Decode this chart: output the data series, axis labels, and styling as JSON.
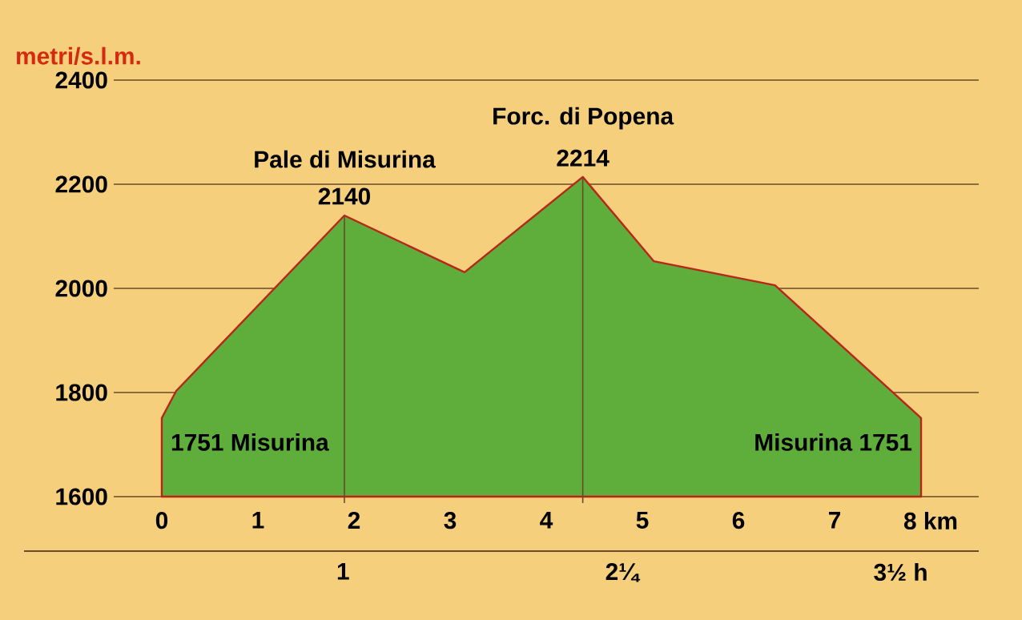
{
  "chart_data": {
    "type": "area",
    "ylabel": "metri/s.l.m.",
    "x": [
      0,
      0.15,
      1.9,
      3.15,
      4.38,
      5.12,
      6.38,
      7.9
    ],
    "series": [
      {
        "color": "#5fae3c",
        "values": [
          1751,
          1803,
          2140,
          2031,
          2214,
          2052,
          2006,
          1751
        ],
        "value_labels": [
          null,
          null,
          "2140",
          null,
          "2214",
          null,
          null,
          null
        ]
      }
    ],
    "xlim": [
      -0.5,
      8.5
    ],
    "ylim": [
      1600,
      2400
    ],
    "xticks": [
      0,
      1,
      2,
      3,
      4,
      5,
      6,
      7,
      {
        "value": 8,
        "label": "8 km"
      }
    ],
    "yticks": [
      1600,
      1800,
      2000,
      2200,
      2400
    ],
    "x2lim": [
      -0.43,
      3.85
    ],
    "x2ticks": [
      1,
      {
        "value": 2.25,
        "label": "2¼"
      },
      {
        "value": 3.5,
        "label": "3½ h"
      }
    ],
    "grid": "y",
    "ref_lines": [
      {
        "axis": "x",
        "value": 1.9,
        "label": "Pale di Misurina"
      },
      {
        "axis": "x",
        "value": 4.38,
        "label": "Forc. di Popena"
      }
    ],
    "annotations": [
      {
        "text": "1751 Misurina",
        "x": 0,
        "y": 1751
      },
      {
        "text": "Misurina 1751",
        "x": 7.9,
        "y": 1751
      }
    ]
  }
}
